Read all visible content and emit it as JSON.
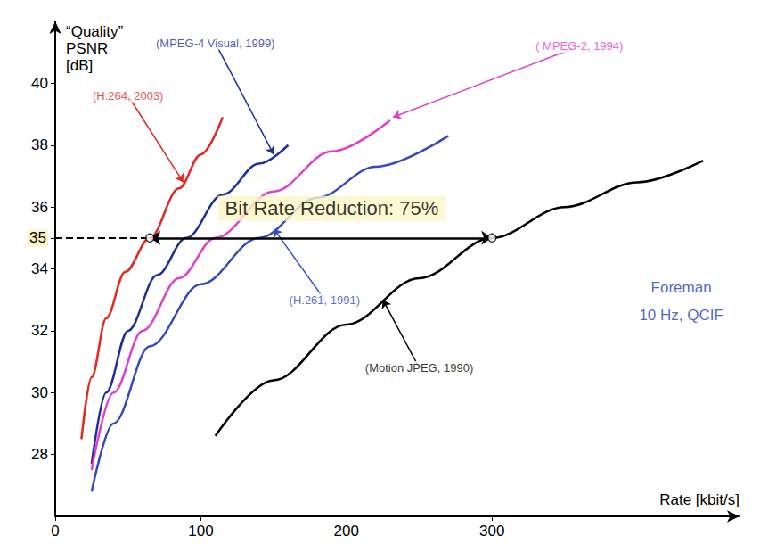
{
  "chart_data": {
    "type": "line",
    "x_label": "Rate [kbit/s]",
    "y_label": "“Quality” PSNR [dB]",
    "xlim": [
      0,
      470
    ],
    "xticks": [
      0,
      100,
      200,
      300
    ],
    "ylim": [
      26,
      42
    ],
    "yticks": [
      28,
      30,
      32,
      34,
      35,
      36,
      38,
      40
    ],
    "grid": false,
    "series": [
      {
        "name": "(H.264, 2003)",
        "color": "#e6261f",
        "x": [
          18,
          25,
          35,
          48,
          65,
          85,
          100,
          115
        ],
        "values": [
          28.5,
          30.5,
          32.4,
          33.9,
          35.0,
          36.6,
          37.7,
          38.9
        ],
        "label_at": [
          50,
          39.6
        ],
        "arrow_to": [
          88,
          36.8
        ]
      },
      {
        "name": "(MPEG-4 Visual, 1999)",
        "color": "#1f2f9a",
        "x": [
          25,
          35,
          50,
          70,
          90,
          115,
          140,
          160
        ],
        "values": [
          27.7,
          30.0,
          32.0,
          33.8,
          35.0,
          36.4,
          37.4,
          38.0
        ],
        "label_at": [
          110,
          41.3
        ],
        "arrow_to": [
          150,
          37.7
        ]
      },
      {
        "name": "( MPEG-2, 1994)",
        "color": "#e040c8",
        "x": [
          25,
          40,
          60,
          85,
          110,
          150,
          190,
          230
        ],
        "values": [
          27.5,
          30.0,
          32.0,
          33.7,
          35.0,
          36.5,
          37.8,
          38.8
        ],
        "label_at": [
          360,
          41.2
        ],
        "arrow_to": [
          232,
          38.9
        ]
      },
      {
        "name": "(H.261, 1991)",
        "color": "#3548c0",
        "x": [
          25,
          40,
          65,
          100,
          140,
          180,
          220,
          270
        ],
        "values": [
          26.8,
          29.0,
          31.5,
          33.5,
          35.0,
          36.3,
          37.3,
          38.3
        ],
        "label_at": [
          185,
          33.0
        ],
        "arrow_to": [
          150,
          35.3
        ]
      },
      {
        "name": "(Motion JPEG, 1990)",
        "color": "#000000",
        "x": [
          110,
          150,
          200,
          250,
          300,
          350,
          400,
          445
        ],
        "values": [
          28.6,
          30.4,
          32.2,
          33.7,
          35.0,
          36.0,
          36.8,
          37.5
        ],
        "label_at": [
          250,
          30.8
        ],
        "arrow_to": [
          225,
          33.0
        ]
      }
    ],
    "annotations": [
      {
        "text": "Bit Rate Reduction: 75%",
        "x": 190,
        "y": 35.95,
        "arrow": {
          "y": 35,
          "from": 65,
          "to": 300
        }
      },
      {
        "text": "Foreman",
        "x": 430,
        "y": 33.4
      },
      {
        "text": "10 Hz, QCIF",
        "x": 430,
        "y": 32.5
      }
    ]
  }
}
